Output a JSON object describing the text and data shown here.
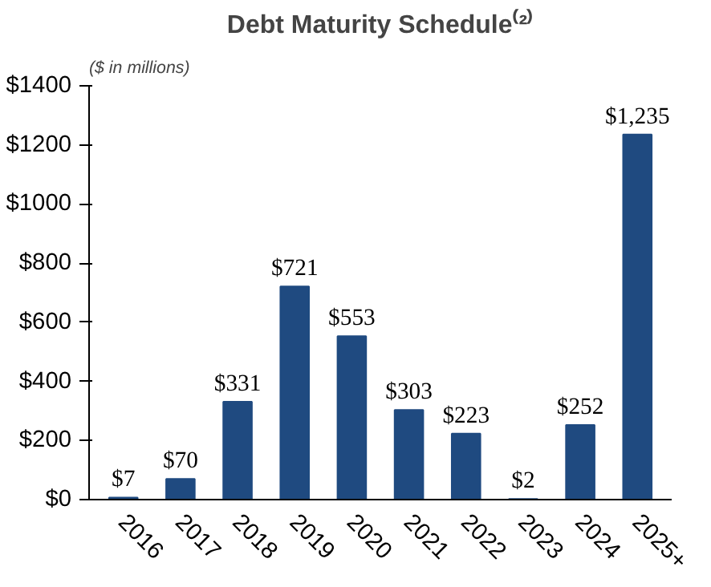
{
  "chart_data": {
    "type": "bar",
    "title": "Debt Maturity Schedule⁽²⁾",
    "subtitle": "($ in millions)",
    "categories": [
      "2016",
      "2017",
      "2018",
      "2019",
      "2020",
      "2021",
      "2022",
      "2023",
      "2024",
      "2025+"
    ],
    "values": [
      7,
      70,
      331,
      721,
      553,
      303,
      223,
      2,
      252,
      1235
    ],
    "value_labels": [
      "$7",
      "$70",
      "$331",
      "$721",
      "$553",
      "$303",
      "$223",
      "$2",
      "$252",
      "$1,235"
    ],
    "color": "#1f4a80",
    "ylim": [
      0,
      1400
    ],
    "yticks": [
      {
        "value": 0,
        "label": "$0"
      },
      {
        "value": 200,
        "label": "$200"
      },
      {
        "value": 400,
        "label": "$400"
      },
      {
        "value": 600,
        "label": "$600"
      },
      {
        "value": 800,
        "label": "$800"
      },
      {
        "value": 1000,
        "label": "$1000"
      },
      {
        "value": 1200,
        "label": "$1200"
      },
      {
        "value": 1400,
        "label": "$1400"
      }
    ],
    "grid": false
  }
}
